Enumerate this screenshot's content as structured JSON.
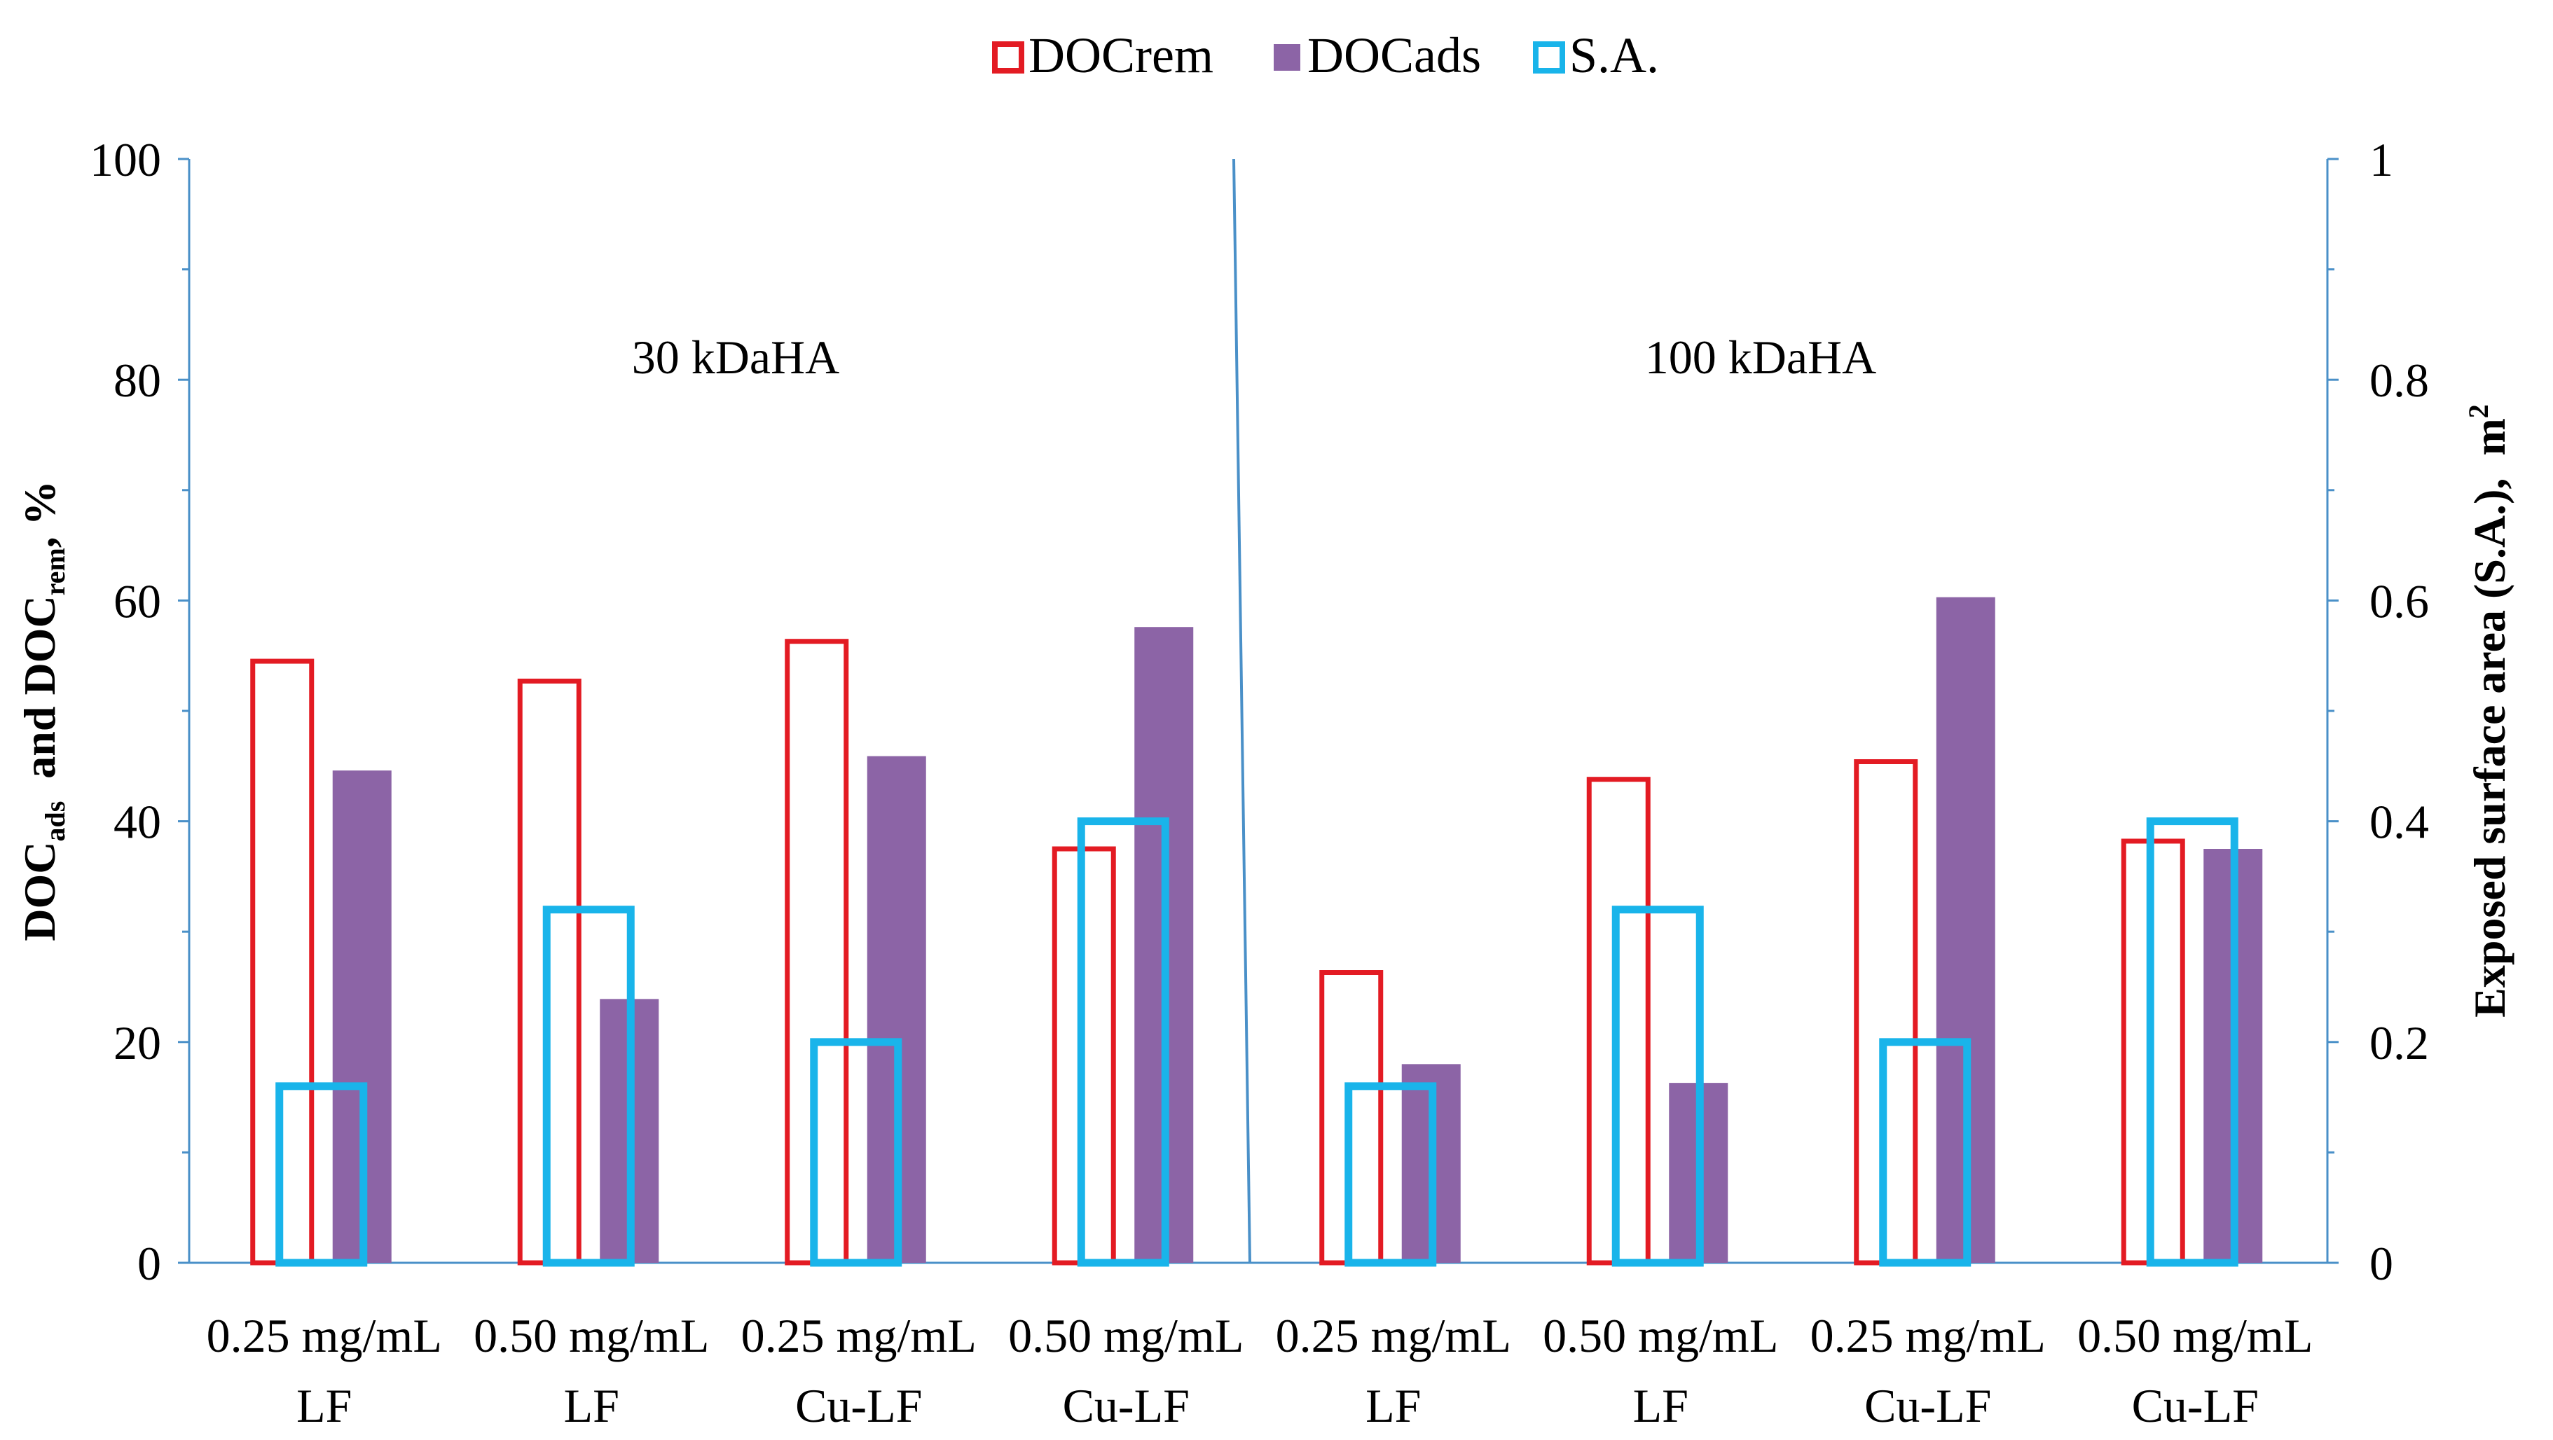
{
  "chart_data": {
    "type": "bar",
    "groups": [
      "30 kDaHA",
      "100 kDaHA"
    ],
    "categories": [
      {
        "line1": "0.25 mg/mL",
        "line2": "LF"
      },
      {
        "line1": "0.50 mg/mL",
        "line2": "LF"
      },
      {
        "line1": "0.25 mg/mL",
        "line2": "Cu-LF"
      },
      {
        "line1": "0.50 mg/mL",
        "line2": "Cu-LF"
      },
      {
        "line1": "0.25 mg/mL",
        "line2": "LF"
      },
      {
        "line1": "0.50 mg/mL",
        "line2": "LF"
      },
      {
        "line1": "0.25 mg/mL",
        "line2": "Cu-LF"
      },
      {
        "line1": "0.50 mg/mL",
        "line2": "Cu-LF"
      }
    ],
    "series": [
      {
        "name": "DOCrem",
        "axis": "left",
        "style": "outline",
        "color": "#e31b23",
        "values": [
          54.5,
          52.7,
          56.3,
          37.5,
          26.3,
          43.8,
          45.4,
          38.2
        ]
      },
      {
        "name": "DOCads",
        "axis": "left",
        "style": "filled",
        "color": "#8c64a6",
        "values": [
          44.6,
          23.9,
          45.9,
          57.6,
          18.0,
          16.3,
          60.3,
          37.5
        ]
      },
      {
        "name": "S.A.",
        "axis": "right",
        "style": "outline",
        "color": "#19b4ea",
        "values": [
          0.16,
          0.32,
          0.2,
          0.4,
          0.16,
          0.32,
          0.2,
          0.4
        ]
      }
    ],
    "y_left": {
      "label_main": "DOC",
      "label_sub1": "ads",
      "label_mid": "  and DOC",
      "label_sub2": "rem",
      "label_end": ", %",
      "range": [
        0,
        100
      ],
      "ticks": [
        0,
        20,
        40,
        60,
        80,
        100
      ]
    },
    "y_right": {
      "label": "Exposed surface area (S.A.),  m",
      "label_sup": "2",
      "range": [
        0,
        1
      ],
      "ticks": [
        "0",
        "0.2",
        "0.4",
        "0.6",
        "0.8",
        "1"
      ]
    },
    "legend": [
      "DOCrem",
      "DOCads",
      "S.A."
    ],
    "legend_position": "top",
    "axis_color": "#4a90c8",
    "grid": false
  }
}
